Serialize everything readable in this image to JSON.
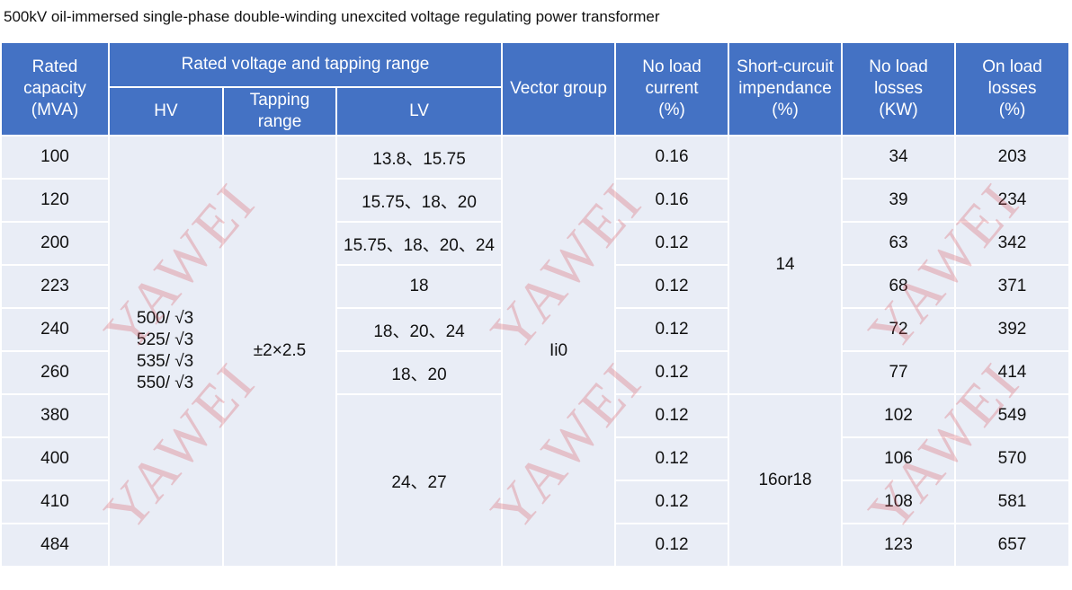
{
  "title": "500kV oil-immersed single-phase double-winding unexcited voltage regulating power transformer",
  "watermark": "YAWEI",
  "headers": {
    "capacity": "Rated capacity (MVA)",
    "voltage_group": "Rated voltage and tapping range",
    "hv": "HV",
    "tapping": "Tapping range",
    "lv": "LV",
    "vector": "Vector group",
    "no_load_current": "No load current (%)",
    "impedance": "Short-curcuit impendance (%)",
    "no_load_losses": "No load losses (KW)",
    "on_load_losses": "On load losses (%)"
  },
  "hv_values": [
    "500/ √3",
    "525/ √3",
    "535/ √3",
    "550/ √3"
  ],
  "tapping_value": "±2×2.5",
  "vector_value": "Ii0",
  "impedance_values": [
    "14",
    "16or18"
  ],
  "lv_values": [
    "13.8、15.75",
    "15.75、18、20",
    "15.75、18、20、24",
    "18",
    "18、20、24",
    "18、20",
    "24、27"
  ],
  "rows": [
    {
      "capacity": "100",
      "current": "0.16",
      "nll": "34",
      "oll": "203"
    },
    {
      "capacity": "120",
      "current": "0.16",
      "nll": "39",
      "oll": "234"
    },
    {
      "capacity": "200",
      "current": "0.12",
      "nll": "63",
      "oll": "342"
    },
    {
      "capacity": "223",
      "current": "0.12",
      "nll": "68",
      "oll": "371"
    },
    {
      "capacity": "240",
      "current": "0.12",
      "nll": "72",
      "oll": "392"
    },
    {
      "capacity": "260",
      "current": "0.12",
      "nll": "77",
      "oll": "414"
    },
    {
      "capacity": "380",
      "current": "0.12",
      "nll": "102",
      "oll": "549"
    },
    {
      "capacity": "400",
      "current": "0.12",
      "nll": "106",
      "oll": "570"
    },
    {
      "capacity": "410",
      "current": "0.12",
      "nll": "108",
      "oll": "581"
    },
    {
      "capacity": "484",
      "current": "0.12",
      "nll": "123",
      "oll": "657"
    }
  ]
}
